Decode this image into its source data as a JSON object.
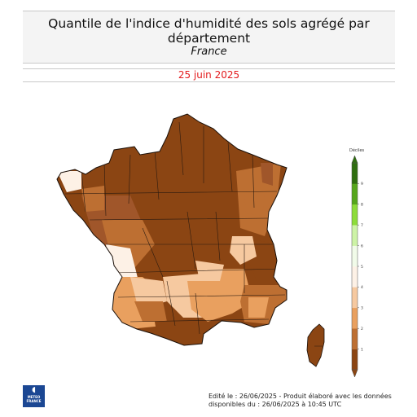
{
  "header": {
    "title_line1": "Quantile de l'indice d'humidité des sols agrégé par",
    "title_line2": "département",
    "subtitle": "France"
  },
  "date": "25 juin 2025",
  "legend": {
    "title": "Déciles",
    "ticks": [
      "1",
      "2",
      "3",
      "4",
      "5",
      "6",
      "7",
      "8",
      "9"
    ],
    "colors": [
      "#8b4513",
      "#bd6f32",
      "#e9a05f",
      "#f6c9a0",
      "#fdf1e6",
      "#f1fbe9",
      "#cdf3a6",
      "#8ddc3a",
      "#56a61c",
      "#2f6e0f"
    ]
  },
  "map": {
    "mainland_colors": [
      "#8b4513",
      "#a0562a",
      "#e9a05f",
      "#f6c9a0",
      "#fdf1e6"
    ],
    "corsica_color": "#8b4513"
  },
  "logo": {
    "mark": "◖",
    "name_line1": "METEO",
    "name_line2": "FRANCE"
  },
  "footer": {
    "line1": "Edité le : 26/06/2025 - Produit élaboré avec les données",
    "line2": "disponibles du : 26/06/2025 à 10:45 UTC"
  }
}
